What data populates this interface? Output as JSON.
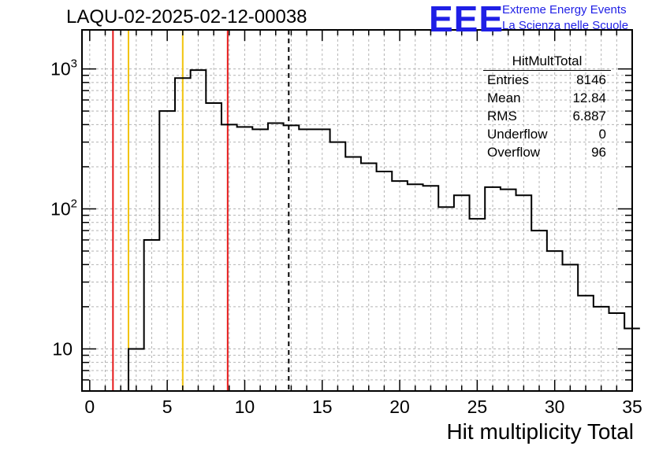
{
  "title": "LAQU-02-2025-02-12-00038",
  "logo": {
    "text": "EEE",
    "line1": "Extreme Energy Events",
    "line2": "La Scienza nelle Scuole",
    "color": "#1f1fe6"
  },
  "stats": {
    "name": "HitMultTotal",
    "rows": [
      {
        "label": "Entries",
        "value": "8146"
      },
      {
        "label": "Mean",
        "value": "12.84"
      },
      {
        "label": "RMS",
        "value": "6.887"
      },
      {
        "label": "Underflow",
        "value": "0"
      },
      {
        "label": "Overflow",
        "value": "96"
      }
    ]
  },
  "chart_data": {
    "type": "bar",
    "style": "step-histogram",
    "xlabel": "Hit multiplicity Total",
    "ylabel": "",
    "xlim": [
      -0.5,
      35
    ],
    "ylim": [
      5,
      1900
    ],
    "log_y": true,
    "grid": true,
    "bin_width": 1,
    "bin_edges_start": -0.5,
    "values": [
      0,
      0,
      0,
      10,
      60,
      500,
      860,
      980,
      570,
      400,
      385,
      370,
      410,
      395,
      370,
      370,
      300,
      235,
      212,
      185,
      158,
      150,
      146,
      103,
      125,
      85,
      143,
      138,
      125,
      70,
      50,
      40,
      24,
      20,
      18,
      14
    ],
    "x_ticks": [
      0,
      5,
      10,
      15,
      20,
      25,
      30,
      35
    ],
    "x_tick_labels": [
      "0",
      "5",
      "10",
      "15",
      "20",
      "25",
      "30",
      "35"
    ],
    "y_tick_values": [
      10,
      100,
      1000
    ],
    "y_tick_labels": [
      {
        "base": "10",
        "exp": ""
      },
      {
        "base": "10",
        "exp": "2"
      },
      {
        "base": "10",
        "exp": "3"
      }
    ],
    "vertical_lines": [
      {
        "x": 1.5,
        "color": "#e6191a",
        "style": "solid"
      },
      {
        "x": 2.5,
        "color": "#f2c40d",
        "style": "solid"
      },
      {
        "x": 6.0,
        "color": "#f2c40d",
        "style": "solid"
      },
      {
        "x": 8.9,
        "color": "#e6191a",
        "style": "solid"
      },
      {
        "x": 12.84,
        "color": "#000000",
        "style": "dashed"
      }
    ]
  }
}
